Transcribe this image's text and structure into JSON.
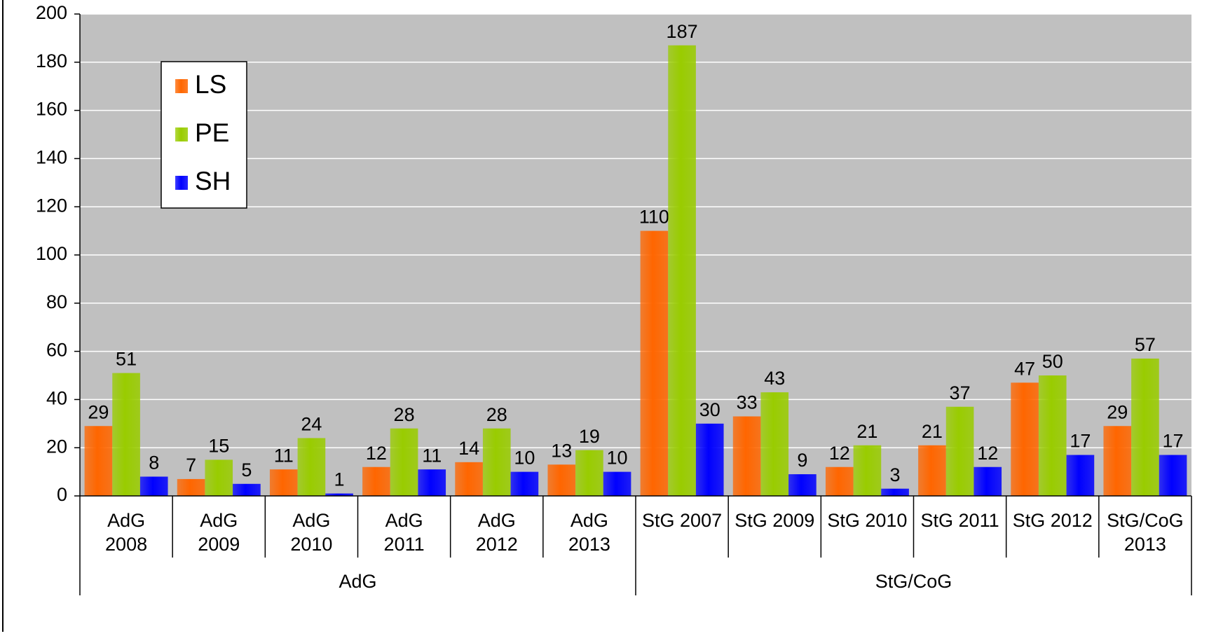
{
  "chart_data": {
    "type": "bar",
    "categories": [
      "AdG\n2008",
      "AdG\n2009",
      "AdG\n2010",
      "AdG\n2011",
      "AdG\n2012",
      "AdG\n2013",
      "StG 2007",
      "StG 2009",
      "StG 2010",
      "StG 2011",
      "StG 2012",
      "StG/CoG\n2013"
    ],
    "groups": [
      {
        "label": "AdG",
        "count": 6
      },
      {
        "label": "StG/CoG",
        "count": 6
      }
    ],
    "series": [
      {
        "name": "LS",
        "color": "#ff6600",
        "values": [
          29,
          7,
          11,
          12,
          14,
          13,
          110,
          33,
          12,
          21,
          47,
          29
        ]
      },
      {
        "name": "PE",
        "color": "#99cc00",
        "values": [
          51,
          15,
          24,
          28,
          28,
          19,
          187,
          43,
          21,
          37,
          50,
          57
        ]
      },
      {
        "name": "SH",
        "color": "#0000ff",
        "values": [
          8,
          5,
          1,
          11,
          10,
          10,
          30,
          9,
          3,
          12,
          17,
          17
        ]
      }
    ],
    "ylim": [
      0,
      200
    ],
    "yticks": [
      0,
      20,
      40,
      60,
      80,
      100,
      120,
      140,
      160,
      180,
      200
    ],
    "grid": true,
    "legend": "upper left"
  }
}
